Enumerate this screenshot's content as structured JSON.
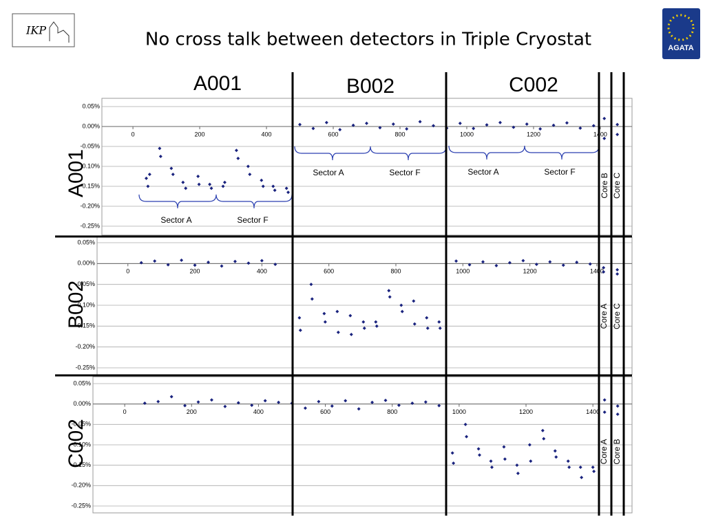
{
  "title": "No cross talk between detectors in Triple Cryostat",
  "logo_left": "IKP",
  "logo_right": "AGATA",
  "columns": [
    "A001",
    "B002",
    "C002"
  ],
  "rows": [
    "A001",
    "B002",
    "C002"
  ],
  "chart_data": [
    {
      "type": "scatter",
      "color": "#1a237e",
      "xlim": [
        -93,
        1495
      ],
      "ylim": [
        -0.25,
        0.05
      ],
      "xticks": [
        0,
        200,
        400,
        600,
        800,
        1000,
        1200,
        1400
      ],
      "yticks": [
        {
          "value": 0.05,
          "label": "0.05%"
        },
        {
          "value": 0,
          "label": "0.00%"
        },
        {
          "value": -0.05,
          "label": "-0.05%"
        },
        {
          "value": -0.1,
          "label": "-0.10%"
        },
        {
          "value": -0.15,
          "label": "-0.15%"
        },
        {
          "value": -0.2,
          "label": "-0.20%"
        },
        {
          "value": -0.25,
          "label": "-0.25%"
        }
      ],
      "annotations": [
        "Sector A",
        "Sector F",
        "Sector A",
        "Sector F",
        "Sector A",
        "Sector F",
        "Core B",
        "Core C"
      ],
      "x": [
        40,
        45,
        50,
        80,
        83,
        115,
        120,
        150,
        158,
        195,
        198,
        230,
        235,
        270,
        275,
        310,
        315,
        345,
        350,
        385,
        390,
        420,
        425,
        460,
        465,
        500,
        540,
        580,
        620,
        660,
        700,
        740,
        780,
        820,
        860,
        900,
        940,
        980,
        1020,
        1060,
        1100,
        1140,
        1180,
        1220,
        1260,
        1300,
        1340,
        1380,
        1412,
        1412,
        1451,
        1451
      ],
      "y": [
        -0.13,
        -0.15,
        -0.12,
        -0.055,
        -0.075,
        -0.105,
        -0.12,
        -0.14,
        -0.155,
        -0.125,
        -0.145,
        -0.145,
        -0.155,
        -0.15,
        -0.14,
        -0.06,
        -0.08,
        -0.1,
        -0.12,
        -0.135,
        -0.15,
        -0.15,
        -0.16,
        -0.155,
        -0.165,
        0.005,
        -0.005,
        0.01,
        -0.008,
        0.003,
        0.008,
        -0.003,
        0.006,
        -0.006,
        0.012,
        0.002,
        -0.004,
        0.008,
        -0.005,
        0.004,
        0.01,
        -0.002,
        0.006,
        -0.006,
        0.003,
        0.009,
        -0.004,
        0.002,
        0.02,
        -0.03,
        0.005,
        -0.02
      ]
    },
    {
      "type": "scatter",
      "color": "#1a237e",
      "xlim": [
        -92,
        1505
      ],
      "ylim": [
        -0.25,
        0.05
      ],
      "xticks": [
        0,
        200,
        400,
        600,
        800,
        1000,
        1200,
        1400
      ],
      "yticks": [
        {
          "value": 0.05,
          "label": "0.05%"
        },
        {
          "value": 0,
          "label": "0.00%"
        },
        {
          "value": -0.05,
          "label": "-0.05%"
        },
        {
          "value": -0.1,
          "label": "-0.10%"
        },
        {
          "value": -0.15,
          "label": "-0.15%"
        },
        {
          "value": -0.2,
          "label": "-0.20%"
        },
        {
          "value": -0.25,
          "label": "-0.25%"
        }
      ],
      "annotations": [
        "Core A",
        "Core C"
      ],
      "x": [
        40,
        80,
        120,
        160,
        200,
        240,
        280,
        320,
        360,
        400,
        440,
        512,
        515,
        547,
        550,
        586,
        589,
        625,
        628,
        664,
        667,
        703,
        706,
        740,
        743,
        779,
        782,
        816,
        819,
        853,
        856,
        892,
        895,
        929,
        932,
        980,
        1020,
        1060,
        1100,
        1140,
        1180,
        1220,
        1260,
        1300,
        1340,
        1380,
        1420,
        1420,
        1461,
        1461
      ],
      "y": [
        0.002,
        0.006,
        -0.003,
        0.008,
        -0.004,
        0.003,
        -0.006,
        0.005,
        0.001,
        0.007,
        -0.002,
        -0.13,
        -0.16,
        -0.05,
        -0.085,
        -0.12,
        -0.14,
        -0.115,
        -0.165,
        -0.125,
        -0.17,
        -0.14,
        -0.155,
        -0.14,
        -0.15,
        -0.065,
        -0.08,
        -0.1,
        -0.115,
        -0.09,
        -0.145,
        -0.13,
        -0.155,
        -0.14,
        -0.155,
        0.006,
        -0.003,
        0.004,
        -0.005,
        0.002,
        0.007,
        -0.002,
        0.004,
        -0.004,
        0.003,
        -0.001,
        -0.01,
        -0.02,
        -0.015,
        -0.025
      ]
    },
    {
      "type": "scatter",
      "color": "#1a237e",
      "xlim": [
        -95,
        1517
      ],
      "ylim": [
        -0.25,
        0.05
      ],
      "xticks": [
        0,
        200,
        400,
        600,
        800,
        1000,
        1200,
        1400
      ],
      "yticks": [
        {
          "value": 0.05,
          "label": "0.05%"
        },
        {
          "value": 0,
          "label": "0.00%"
        },
        {
          "value": -0.05,
          "label": "-0.05%"
        },
        {
          "value": -0.1,
          "label": "-0.10%"
        },
        {
          "value": -0.15,
          "label": "-0.15%"
        },
        {
          "value": -0.2,
          "label": "-0.20%"
        },
        {
          "value": -0.25,
          "label": "-0.25%"
        }
      ],
      "annotations": [
        "Core A",
        "Core B"
      ],
      "x": [
        60,
        100,
        140,
        180,
        220,
        260,
        300,
        340,
        380,
        420,
        460,
        500,
        540,
        580,
        620,
        660,
        700,
        740,
        780,
        820,
        860,
        900,
        940,
        980,
        983,
        1019,
        1022,
        1058,
        1061,
        1095,
        1098,
        1134,
        1137,
        1173,
        1176,
        1211,
        1214,
        1250,
        1253,
        1287,
        1290,
        1326,
        1329,
        1363,
        1366,
        1400,
        1403,
        1435,
        1435,
        1474,
        1474
      ],
      "y": [
        0.002,
        0.006,
        0.018,
        -0.004,
        0.005,
        0.01,
        -0.006,
        0.003,
        -0.003,
        0.008,
        0.004,
        0.002,
        -0.01,
        0.006,
        -0.005,
        0.008,
        -0.012,
        0.004,
        0.009,
        -0.003,
        0.002,
        0.005,
        -0.004,
        -0.12,
        -0.145,
        -0.05,
        -0.08,
        -0.11,
        -0.125,
        -0.14,
        -0.155,
        -0.105,
        -0.135,
        -0.15,
        -0.17,
        -0.1,
        -0.14,
        -0.065,
        -0.085,
        -0.115,
        -0.13,
        -0.14,
        -0.155,
        -0.155,
        -0.18,
        -0.155,
        -0.165,
        0.01,
        -0.02,
        -0.005,
        -0.025
      ]
    }
  ]
}
